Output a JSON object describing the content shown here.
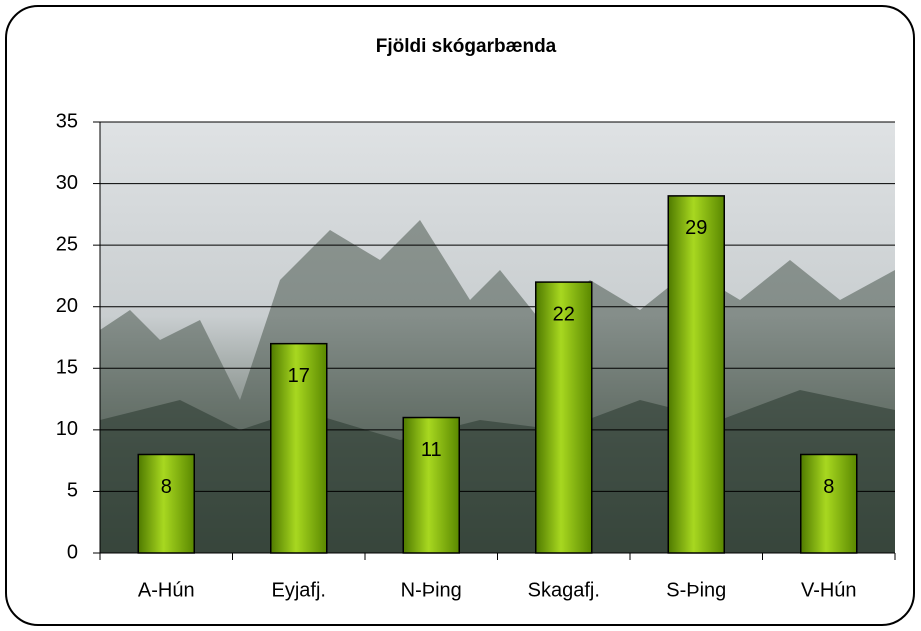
{
  "chart_data": {
    "type": "bar",
    "title": "Fjöldi skógarbænda",
    "categories": [
      "A-Hún",
      "Eyjafj.",
      "N-Þing",
      "Skagafj.",
      "S-Þing",
      "V-Hún"
    ],
    "values": [
      8,
      17,
      11,
      22,
      29,
      8
    ],
    "color": "#7fb000",
    "ylim": [
      0,
      35
    ],
    "yticks": [
      0,
      5,
      10,
      15,
      20,
      25,
      30,
      35
    ],
    "grid": true
  }
}
